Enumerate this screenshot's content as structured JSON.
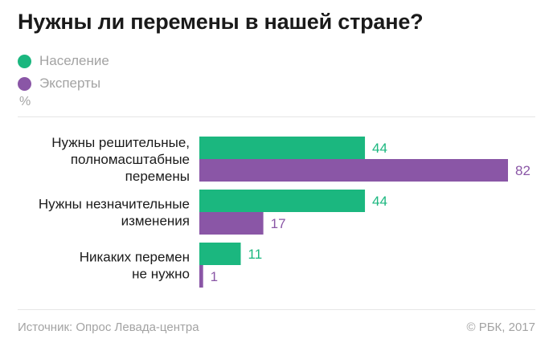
{
  "chart_data": {
    "type": "bar",
    "orientation": "horizontal",
    "title": "Нужны ли перемены в нашей стране?",
    "unit": "%",
    "categories": [
      [
        "Нужны решительные,",
        "полномасштабные",
        "перемены"
      ],
      [
        "Нужны незначительные",
        "изменения"
      ],
      [
        "Никаких перемен",
        "не нужно"
      ]
    ],
    "series": [
      {
        "name": "Население",
        "color": "#1bb77f",
        "values": [
          44,
          44,
          11
        ]
      },
      {
        "name": "Эксперты",
        "color": "#8a56a6",
        "values": [
          82,
          17,
          1
        ]
      }
    ],
    "xlim": [
      0,
      82
    ],
    "grid": false,
    "legend_position": "top-left"
  },
  "footer": {
    "source": "Источник: Опрос Левада-центра",
    "copyright": "© РБК, 2017"
  }
}
